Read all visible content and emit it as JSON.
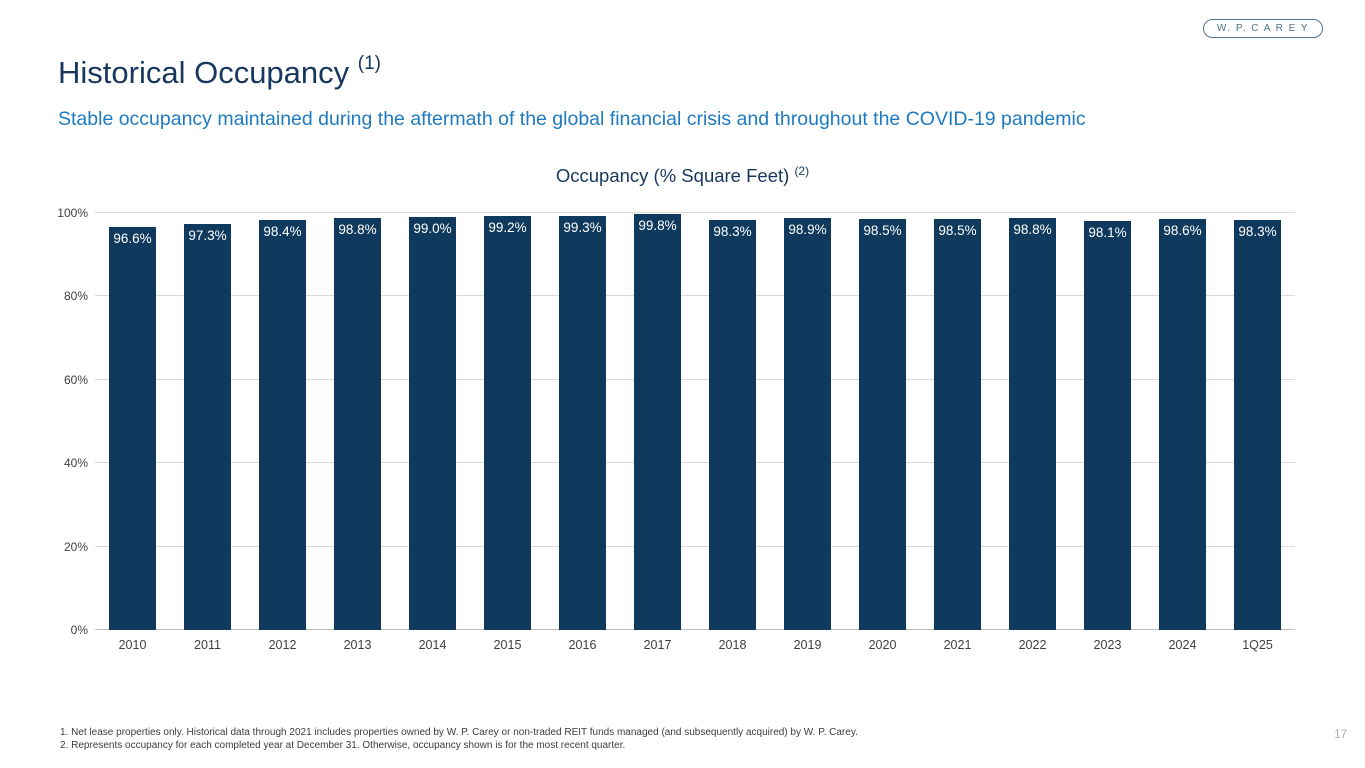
{
  "logo": {
    "text": "W. P. C A R E Y"
  },
  "page": {
    "title": "Historical Occupancy",
    "title_superscript": "(1)",
    "subtitle": "Stable occupancy maintained during the aftermath of the global financial crisis and throughout the COVID-19 pandemic",
    "page_number": "17"
  },
  "chart_data": {
    "type": "bar",
    "title": "Occupancy (% Square Feet)",
    "title_superscript": "(2)",
    "categories": [
      "2010",
      "2011",
      "2012",
      "2013",
      "2014",
      "2015",
      "2016",
      "2017",
      "2018",
      "2019",
      "2020",
      "2021",
      "2022",
      "2023",
      "2024",
      "1Q25"
    ],
    "values": [
      96.6,
      97.3,
      98.4,
      98.8,
      99.0,
      99.2,
      99.3,
      99.8,
      98.3,
      98.9,
      98.5,
      98.5,
      98.8,
      98.1,
      98.6,
      98.3
    ],
    "value_labels": [
      "96.6%",
      "97.3%",
      "98.4%",
      "98.8%",
      "99.0%",
      "99.2%",
      "99.3%",
      "99.8%",
      "98.3%",
      "98.9%",
      "98.5%",
      "98.5%",
      "98.8%",
      "98.1%",
      "98.6%",
      "98.3%"
    ],
    "xlabel": "",
    "ylabel": "",
    "ylim": [
      0,
      100
    ],
    "y_ticks": [
      "0%",
      "20%",
      "40%",
      "60%",
      "80%",
      "100%"
    ],
    "grid": true,
    "legend": "none",
    "bar_color": "#0f3a5d",
    "label_color": "#ffffff"
  },
  "footnotes": [
    "1. Net lease properties only. Historical data through 2021 includes properties owned by W. P. Carey or non-traded REIT funds managed (and subsequently acquired) by W. P. Carey.",
    "2. Represents occupancy for each completed year at December 31. Otherwise, occupancy shown is for the most recent quarter."
  ],
  "colors": {
    "title": "#17375e",
    "subtitle": "#1f7bbf",
    "bar": "#0f3a5d",
    "axis_text": "#404040",
    "gridline": "#d9d9d9",
    "logo": "#4f7189",
    "page_number": "#aeaeae"
  }
}
